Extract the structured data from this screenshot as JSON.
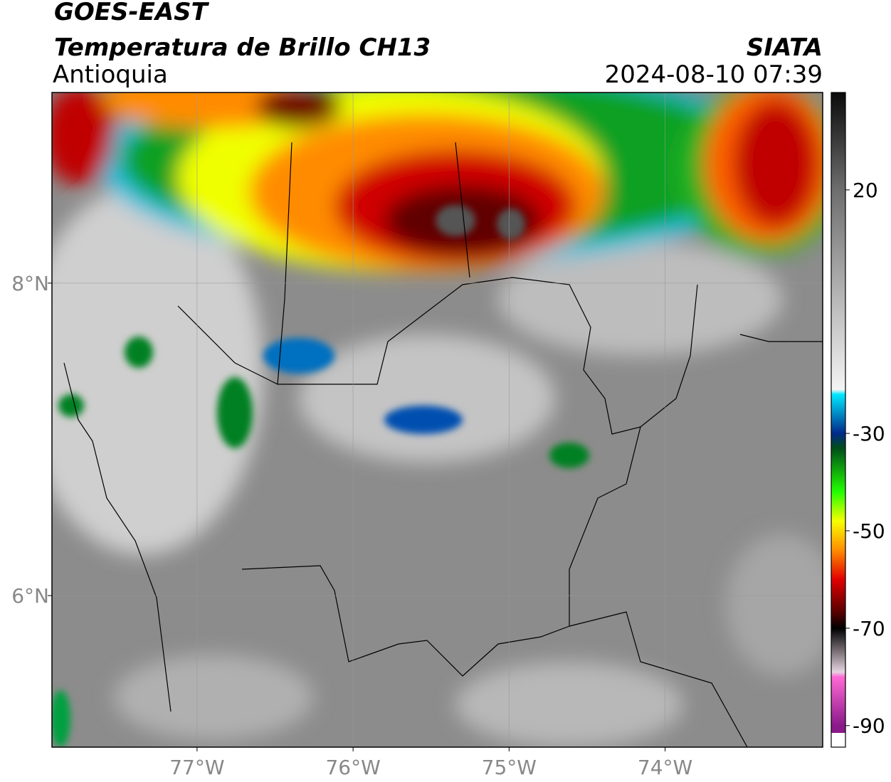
{
  "header": {
    "title": "GOES-EAST",
    "subtitle": "Temperatura de Brillo CH13",
    "region": "Antioquia",
    "source": "SIATA",
    "datetime": "2024-08-10 07:39"
  },
  "map": {
    "xlim": [
      -77.93,
      -72.99
    ],
    "ylim": [
      5.03,
      9.22
    ],
    "xticks": [
      {
        "value": -77,
        "label": "77°W"
      },
      {
        "value": -76,
        "label": "76°W"
      },
      {
        "value": -75,
        "label": "75°W"
      },
      {
        "value": -74,
        "label": "74°W"
      }
    ],
    "yticks": [
      {
        "value": 8,
        "label": "8°N"
      },
      {
        "value": 6,
        "label": "6°N"
      }
    ],
    "grid": true
  },
  "colorbar": {
    "lim": [
      -91.5,
      40
    ],
    "ticks": [
      20,
      -30,
      -50,
      -70,
      -90
    ],
    "stops": [
      {
        "value": 40,
        "color": "#0a0a0a"
      },
      {
        "value": 20,
        "color": "#6e6e6e"
      },
      {
        "value": -21,
        "color": "#f4f4f4"
      },
      {
        "value": -22,
        "color": "#00e8ff"
      },
      {
        "value": -30,
        "color": "#002a8a"
      },
      {
        "value": -33,
        "color": "#004d1a"
      },
      {
        "value": -42,
        "color": "#22ff00"
      },
      {
        "value": -48,
        "color": "#f6ff00"
      },
      {
        "value": -54,
        "color": "#ff8c00"
      },
      {
        "value": -60,
        "color": "#e00000"
      },
      {
        "value": -67,
        "color": "#500000"
      },
      {
        "value": -70,
        "color": "#000000"
      },
      {
        "value": -79,
        "color": "#e6d4e0"
      },
      {
        "value": -80,
        "color": "#ff6ad5"
      },
      {
        "value": -90,
        "color": "#8a1a8a"
      }
    ]
  }
}
